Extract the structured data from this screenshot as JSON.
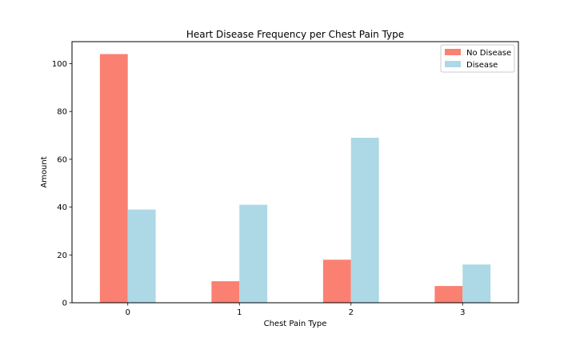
{
  "chart_data": {
    "type": "bar",
    "title": "Heart Disease Frequency per Chest Pain Type",
    "xlabel": "Chest Pain Type",
    "ylabel": "Amount",
    "categories": [
      "0",
      "1",
      "2",
      "3"
    ],
    "series": [
      {
        "name": "No Disease",
        "color": "#fa8072",
        "values": [
          104,
          9,
          18,
          7
        ]
      },
      {
        "name": "Disease",
        "color": "#add8e6",
        "values": [
          39,
          41,
          69,
          16
        ]
      }
    ],
    "ylim": [
      0,
      109.2
    ],
    "yticks": [
      0,
      20,
      40,
      60,
      80,
      100
    ],
    "grid": false,
    "legend": "top-right"
  }
}
